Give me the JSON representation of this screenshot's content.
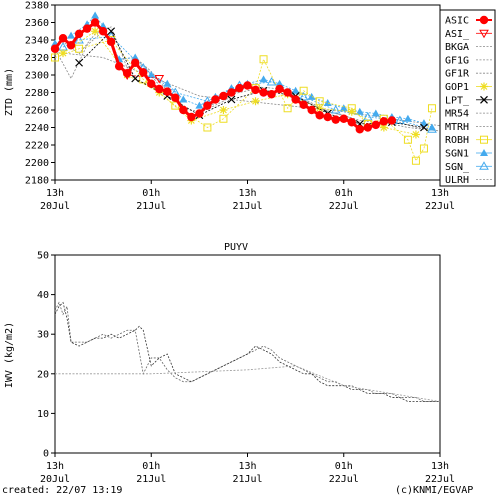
{
  "footer": {
    "created": "created: 22/07 13:19",
    "copyright": "(c)KNMI/EGVAP"
  },
  "x_ticks": [
    {
      "hour": 0,
      "line1": "13h",
      "line2": "20Jul"
    },
    {
      "hour": 12,
      "line1": "01h",
      "line2": "21Jul"
    },
    {
      "hour": 24,
      "line1": "13h",
      "line2": "21Jul"
    },
    {
      "hour": 36,
      "line1": "01h",
      "line2": "22Jul"
    },
    {
      "hour": 48,
      "line1": "13h",
      "line2": "22Jul"
    }
  ],
  "chart_data": [
    {
      "type": "scatter",
      "title": "",
      "xlabel": "",
      "ylabel": "ZTD (mm)",
      "x_unit": "hours since 13h 20Jul",
      "xlim": [
        0,
        48
      ],
      "ylim": [
        2180,
        2380
      ],
      "yticks": [
        2180,
        2200,
        2220,
        2240,
        2260,
        2280,
        2300,
        2320,
        2340,
        2360,
        2380
      ],
      "grid": false,
      "legend_position": "right",
      "legend": [
        "ASIC",
        "ASI_",
        "BKGA",
        "GF1G",
        "GF1R",
        "GOP1",
        "LPT_",
        "MR54",
        "MTRH",
        "ROBH",
        "SGN1",
        "SGN_",
        "ULRH"
      ],
      "series": [
        {
          "name": "ASIC",
          "color": "#ff0000",
          "marker": "dot",
          "x": [
            0,
            1,
            2,
            3,
            4,
            5,
            6,
            7,
            8,
            9,
            10,
            11,
            12,
            13,
            14,
            15,
            16,
            17,
            18,
            19,
            20,
            21,
            22,
            23,
            24,
            25,
            26,
            27,
            28,
            29,
            30,
            31,
            32,
            33,
            34,
            35,
            36,
            37,
            38,
            39,
            40,
            41,
            42
          ],
          "y": [
            2330,
            2342,
            2334,
            2347,
            2353,
            2360,
            2350,
            2338,
            2310,
            2302,
            2314,
            2303,
            2290,
            2284,
            2281,
            2274,
            2260,
            2252,
            2256,
            2265,
            2272,
            2276,
            2280,
            2285,
            2288,
            2283,
            2280,
            2278,
            2284,
            2280,
            2272,
            2266,
            2260,
            2254,
            2252,
            2249,
            2250,
            2246,
            2238,
            2240,
            2243,
            2247,
            2248
          ]
        },
        {
          "name": "SGN1",
          "color": "#44aaee",
          "marker": "triangle-filled",
          "x": [
            0,
            2,
            4,
            5,
            6,
            8,
            10,
            12,
            14,
            16,
            18,
            20,
            22,
            24,
            26,
            28,
            30,
            32,
            34,
            36,
            38,
            40,
            42,
            44,
            46,
            47
          ],
          "y": [
            2336,
            2345,
            2358,
            2368,
            2356,
            2318,
            2320,
            2300,
            2290,
            2272,
            2265,
            2275,
            2285,
            2290,
            2295,
            2290,
            2282,
            2275,
            2268,
            2262,
            2258,
            2256,
            2252,
            2250,
            2245,
            2240
          ]
        },
        {
          "name": "SGN_",
          "color": "#44aaee",
          "marker": "triangle-open",
          "x": [
            1,
            3,
            7,
            11,
            15,
            19,
            23,
            27,
            31,
            35,
            39,
            43,
            47
          ],
          "y": [
            2332,
            2340,
            2344,
            2308,
            2280,
            2270,
            2288,
            2292,
            2275,
            2260,
            2252,
            2248,
            2238
          ]
        },
        {
          "name": "GOP1",
          "color": "#eedd22",
          "marker": "star",
          "x": [
            1,
            5,
            9,
            13,
            17,
            21,
            25,
            29,
            33,
            37,
            41,
            45
          ],
          "y": [
            2325,
            2350,
            2300,
            2280,
            2248,
            2260,
            2270,
            2278,
            2262,
            2258,
            2240,
            2232
          ]
        },
        {
          "name": "ROBH",
          "color": "#eedd22",
          "marker": "square-open",
          "x": [
            0,
            3,
            7,
            11,
            15,
            19,
            21,
            25,
            26,
            29,
            31,
            33,
            37,
            39,
            41,
            44,
            45,
            46,
            47
          ],
          "y": [
            2320,
            2330,
            2340,
            2295,
            2265,
            2240,
            2250,
            2285,
            2318,
            2262,
            2282,
            2270,
            2262,
            2244,
            2250,
            2226,
            2202,
            2216,
            2262
          ]
        },
        {
          "name": "LPT_",
          "color": "#000000",
          "marker": "x",
          "x": [
            3,
            7,
            10,
            14,
            18,
            22,
            26,
            30,
            34,
            38,
            42,
            46
          ],
          "y": [
            2314,
            2350,
            2296,
            2276,
            2254,
            2272,
            2282,
            2276,
            2256,
            2244,
            2246,
            2240
          ]
        },
        {
          "name": "ASI_",
          "color": "#ff0000",
          "marker": "triangle-down-open",
          "x": [
            9,
            13
          ],
          "y": [
            2300,
            2296
          ]
        },
        {
          "name": "BKGA",
          "color": "#888888",
          "marker": "none",
          "x": [
            0,
            2,
            4,
            6,
            8,
            10,
            12,
            14,
            16,
            18,
            20,
            22,
            24,
            26,
            28,
            30,
            32,
            34,
            36,
            38,
            40,
            42,
            44,
            46,
            48
          ],
          "y": [
            2330,
            2296,
            2334,
            2350,
            2318,
            2320,
            2304,
            2282,
            2262,
            2258,
            2268,
            2278,
            2282,
            2286,
            2284,
            2276,
            2268,
            2258,
            2254,
            2248,
            2246,
            2244,
            2240,
            2238,
            2236
          ]
        },
        {
          "name": "GF1G",
          "color": "#888888",
          "marker": "none",
          "x": [
            0,
            1,
            3,
            5,
            7,
            9,
            11,
            13,
            15,
            17,
            19,
            21,
            23,
            25,
            27,
            29,
            31,
            33,
            35,
            37,
            39,
            41,
            43,
            45,
            47
          ],
          "y": [
            2336,
            2338,
            2324,
            2347,
            2355,
            2308,
            2312,
            2288,
            2276,
            2252,
            2261,
            2270,
            2283,
            2290,
            2280,
            2282,
            2271,
            2262,
            2256,
            2250,
            2242,
            2246,
            2246,
            2240,
            2238
          ]
        },
        {
          "name": "ULRH",
          "color": "#888888",
          "marker": "none",
          "x": [
            0,
            6,
            12,
            18,
            24,
            30,
            36,
            42,
            48
          ],
          "y": [
            2326,
            2320,
            2298,
            2276,
            2270,
            2264,
            2258,
            2250,
            2242
          ]
        }
      ]
    },
    {
      "type": "line",
      "title": "PUYV",
      "xlabel": "",
      "ylabel": "IWV (kg/m2)",
      "x_unit": "hours since 13h 20Jul",
      "xlim": [
        0,
        48
      ],
      "ylim": [
        0,
        50
      ],
      "yticks": [
        0,
        10,
        20,
        30,
        40,
        50
      ],
      "grid": false,
      "series": [
        {
          "color": "#666666",
          "x": [
            0,
            0.5,
            1,
            1.5,
            2,
            3,
            4,
            5,
            6,
            7,
            8,
            9,
            10,
            11,
            12,
            13,
            14,
            15,
            16,
            17,
            18,
            19,
            20,
            21,
            22,
            23,
            24,
            25,
            26,
            27,
            28,
            29,
            30,
            31,
            32,
            33,
            34,
            35,
            36,
            37,
            38,
            39,
            40,
            41,
            42,
            43,
            44,
            45,
            46,
            47,
            48
          ],
          "y": [
            36,
            38,
            35,
            37,
            28,
            28,
            28,
            29,
            30,
            29,
            30,
            31,
            31,
            20,
            24,
            24,
            21,
            19,
            18,
            18,
            19,
            20,
            21,
            22,
            23,
            24,
            25,
            26,
            27,
            26,
            24,
            23,
            22,
            21,
            20,
            19,
            18,
            18,
            17,
            17,
            16,
            16,
            15,
            15,
            15,
            14,
            14,
            14,
            13,
            13,
            13
          ]
        },
        {
          "color": "#333333",
          "x": [
            0,
            0.5,
            1,
            1.5,
            2,
            3,
            4,
            5,
            6,
            7,
            8,
            9,
            10,
            10.5,
            11,
            12,
            13,
            14,
            15,
            16,
            17,
            18,
            19,
            20,
            21,
            22,
            23,
            24,
            25,
            26,
            27,
            28,
            29,
            30,
            31,
            32,
            33,
            34,
            35,
            36,
            37,
            38,
            39,
            40,
            41,
            42,
            43,
            44,
            45,
            46,
            47,
            48
          ],
          "y": [
            35,
            37,
            38,
            34,
            28,
            27,
            28,
            29,
            29,
            30,
            29,
            30,
            31,
            32,
            31,
            22,
            24,
            25,
            20,
            19,
            18,
            19,
            20,
            21,
            22,
            23,
            24,
            25,
            27,
            26,
            25,
            23,
            22,
            21,
            20,
            20,
            18,
            17,
            17,
            17,
            16,
            16,
            15,
            15,
            15,
            14,
            14,
            13,
            13,
            13,
            13,
            13
          ]
        },
        {
          "color": "#999999",
          "x": [
            0,
            12,
            24,
            30,
            36,
            42,
            48
          ],
          "y": [
            20,
            20,
            21,
            22,
            17,
            15,
            13
          ]
        }
      ]
    }
  ]
}
